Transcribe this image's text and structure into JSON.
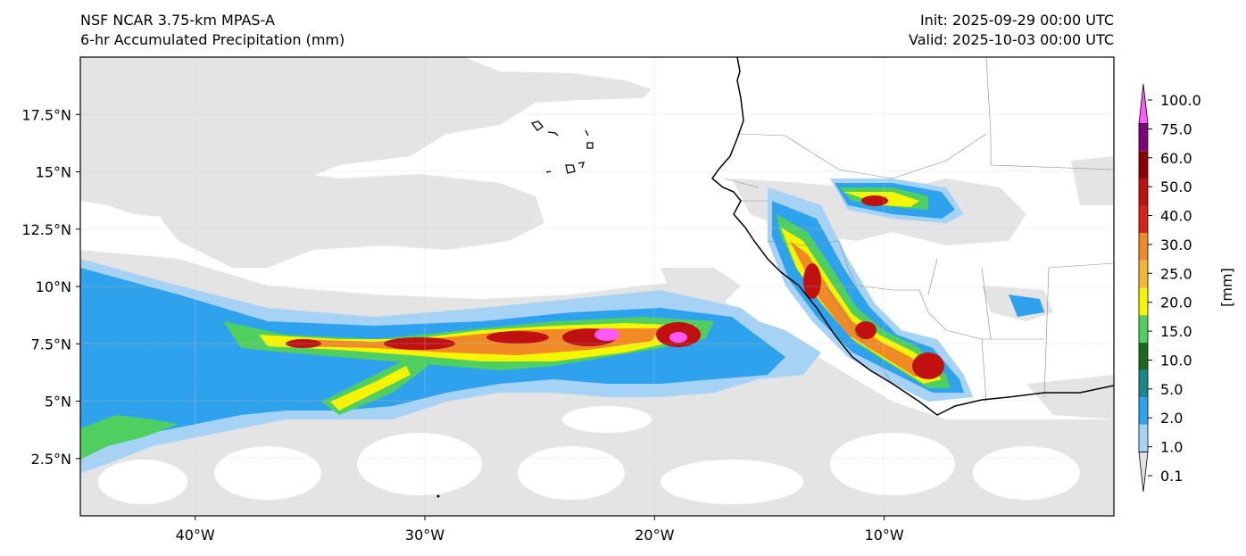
{
  "header": {
    "model": "NSF NCAR 3.75-km MPAS-A",
    "field": "6-hr Accumulated Precipitation (mm)",
    "init": "Init: 2025-09-29 00:00 UTC",
    "valid": "Valid: 2025-10-03 00:00 UTC"
  },
  "map": {
    "extent": {
      "lon": [
        -45,
        0
      ],
      "lat": [
        0,
        20
      ]
    },
    "lon_ticks": [
      {
        "value": -40,
        "label": "40°W"
      },
      {
        "value": -30,
        "label": "30°W"
      },
      {
        "value": -20,
        "label": "20°W"
      },
      {
        "value": -10,
        "label": "10°W"
      }
    ],
    "lat_ticks": [
      {
        "value": 2.5,
        "label": "2.5°N"
      },
      {
        "value": 5,
        "label": "5°N"
      },
      {
        "value": 7.5,
        "label": "7.5°N"
      },
      {
        "value": 10,
        "label": "10°N"
      },
      {
        "value": 12.5,
        "label": "12.5°N"
      },
      {
        "value": 15,
        "label": "15°N"
      },
      {
        "value": 17.5,
        "label": "17.5°N"
      }
    ],
    "grid": true
  },
  "colorbar": {
    "unit": "[mm]",
    "levels": [
      {
        "label": "0.1",
        "color": "#e2e2e2"
      },
      {
        "label": "1.0",
        "color": "#a6d3f5"
      },
      {
        "label": "2.0",
        "color": "#2fa2ee"
      },
      {
        "label": "5.0",
        "color": "#17888a"
      },
      {
        "label": "10.0",
        "color": "#1c6b1c"
      },
      {
        "label": "15.0",
        "color": "#4fcf5f"
      },
      {
        "label": "20.0",
        "color": "#f5f500"
      },
      {
        "label": "25.0",
        "color": "#f3b737"
      },
      {
        "label": "30.0",
        "color": "#ef8a25"
      },
      {
        "label": "40.0",
        "color": "#d6231c"
      },
      {
        "label": "50.0",
        "color": "#c0100f"
      },
      {
        "label": "60.0",
        "color": "#8e0000"
      },
      {
        "label": "75.0",
        "color": "#7e0479"
      },
      {
        "label": "100.0",
        "color": "#ff59ff"
      }
    ]
  }
}
